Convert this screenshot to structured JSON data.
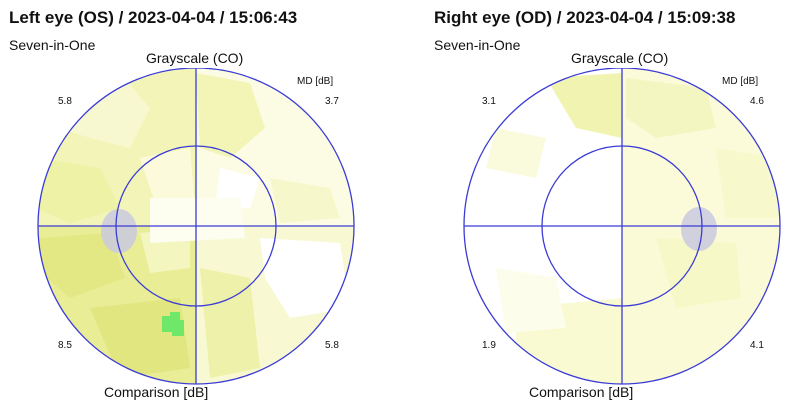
{
  "left": {
    "title": "Left eye (OS) / 2023-04-04 / 15:06:43",
    "program": "Seven-in-One",
    "top_label": "Grayscale (CO)",
    "md_label": "MD [dB]",
    "bottom_label": "Comparison [dB]",
    "quadrants": {
      "top_left": "5.8",
      "top_right": "3.7",
      "bottom_left": "8.5",
      "bottom_right": "5.8"
    }
  },
  "right": {
    "title": "Right eye (OD) / 2023-04-04 / 15:09:38",
    "program": "Seven-in-One",
    "top_label": "Grayscale (CO)",
    "md_label": "MD [dB]",
    "bottom_label": "Comparison [dB]",
    "quadrants": {
      "top_left": "3.1",
      "top_right": "4.6",
      "bottom_left": "1.9",
      "bottom_right": "4.1"
    }
  },
  "colors": {
    "axis": "#3b3bd6",
    "light_yellow": "#fafbd8",
    "mid_yellow": "#f1f4b0",
    "dark_yellow": "#e5ea8c",
    "blind_spot": "#c9c9df",
    "green_defect": "#6fe86a"
  }
}
